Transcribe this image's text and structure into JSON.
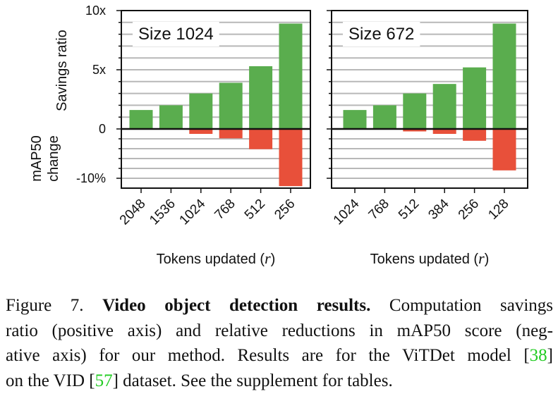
{
  "chart_data": [
    {
      "type": "bar",
      "title": "Size 1024",
      "categories": [
        "2048",
        "1536",
        "1024",
        "768",
        "512",
        "256"
      ],
      "series": [
        {
          "name": "Savings ratio",
          "color": "#5aad4e",
          "values": [
            1.6,
            2.0,
            3.0,
            3.9,
            5.3,
            8.9
          ]
        },
        {
          "name": "mAP50 change",
          "color": "#e8503a",
          "axis": "y2",
          "values": [
            0,
            0,
            -1.0,
            -1.9,
            -4.1,
            -11.6
          ]
        }
      ],
      "ylim": [
        0,
        10
      ],
      "yticks": [
        0,
        {
          "value": 5,
          "label": "5x"
        },
        {
          "value": 10,
          "label": "10x"
        }
      ],
      "yminorticks": [
        1,
        2,
        3,
        4,
        6,
        7,
        8,
        9
      ],
      "y2lim": [
        -12,
        0
      ],
      "y2ticks": [
        {
          "value": -10,
          "label": "-10%"
        }
      ],
      "y2minorticks": [
        -2,
        -4,
        -6,
        -8
      ],
      "tick_labels": true,
      "grid": true,
      "xlabel": [
        "Tokens updated (",
        "r",
        ")"
      ]
    },
    {
      "type": "bar",
      "title": "Size 672",
      "categories": [
        "1024",
        "768",
        "512",
        "384",
        "256",
        "128"
      ],
      "series": [
        {
          "color": "#5aad4e",
          "values": [
            1.6,
            2.0,
            3.0,
            3.8,
            5.2,
            8.9
          ]
        },
        {
          "color": "#e8503a",
          "axis": "y2",
          "values": [
            0,
            0,
            -0.5,
            -1.0,
            -2.4,
            -8.4
          ]
        }
      ],
      "ylim": [
        0,
        10
      ],
      "yticks": [
        0,
        5,
        10
      ],
      "yminorticks": [
        1,
        2,
        3,
        4,
        6,
        7,
        8,
        9
      ],
      "y2lim": [
        -12,
        0
      ],
      "y2ticks": [
        -10
      ],
      "y2minorticks": [
        -2,
        -4,
        -6,
        -8
      ],
      "tick_labels": false,
      "grid": true,
      "xlabel": [
        "Tokens updated (",
        "r",
        ")"
      ]
    }
  ],
  "caption": {
    "lines": [
      [
        {
          "text": "Figure 7. "
        },
        {
          "text": "Video object detection results.",
          "style": "bold"
        },
        {
          "text": " Computation savings"
        }
      ],
      [
        {
          "text": "ratio (positive axis) and relative reductions in mAP50 score (neg-"
        }
      ],
      [
        {
          "text": "ative axis) for our method. Results are for the ViTDet model ["
        },
        {
          "text": "38",
          "style": "cite"
        },
        {
          "text": "]"
        }
      ],
      [
        {
          "text": "on the VID ["
        },
        {
          "text": "57",
          "style": "cite"
        },
        {
          "text": "] dataset. See the supplement for tables."
        }
      ]
    ]
  }
}
